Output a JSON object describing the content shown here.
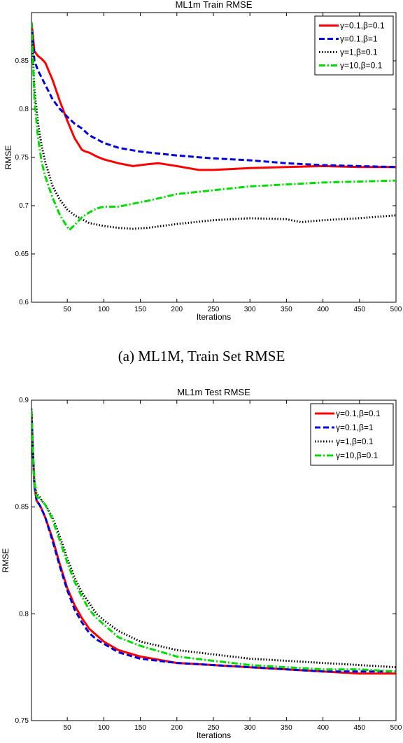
{
  "caption_a": "(a) ML1M, Train Set RMSE",
  "chart_data": [
    {
      "type": "line",
      "title": "ML1m Train RMSE",
      "xlabel": "Iterations",
      "ylabel": "RMSE",
      "xlim": [
        1,
        500
      ],
      "ylim": [
        0.6,
        0.9
      ],
      "xticks": [
        50,
        100,
        150,
        200,
        250,
        300,
        350,
        400,
        450,
        500
      ],
      "yticks": [
        0.6,
        0.65,
        0.7,
        0.75,
        0.8,
        0.85
      ],
      "ytick_labels": [
        "0.6",
        "0.65",
        "0.7",
        "0.75",
        "0.8",
        "0.85"
      ],
      "grid": false,
      "legend_position": "top-right",
      "series": [
        {
          "name": "γ=0.1,β=0.1",
          "color": "#ff0000",
          "dash": "solid",
          "x": [
            1,
            5,
            10,
            15,
            20,
            30,
            40,
            50,
            60,
            70,
            75,
            80,
            90,
            100,
            120,
            140,
            160,
            175,
            200,
            230,
            250,
            300,
            350,
            400,
            450,
            500
          ],
          "y": [
            0.89,
            0.86,
            0.855,
            0.852,
            0.848,
            0.83,
            0.808,
            0.788,
            0.77,
            0.758,
            0.756,
            0.755,
            0.751,
            0.748,
            0.744,
            0.741,
            0.743,
            0.744,
            0.741,
            0.737,
            0.737,
            0.739,
            0.74,
            0.741,
            0.74,
            0.74
          ]
        },
        {
          "name": "γ=0.1,β=1",
          "color": "#0000dd",
          "dash": "dashed",
          "x": [
            1,
            5,
            10,
            20,
            30,
            40,
            50,
            60,
            70,
            80,
            100,
            120,
            150,
            200,
            250,
            300,
            350,
            400,
            450,
            500
          ],
          "y": [
            0.89,
            0.85,
            0.84,
            0.825,
            0.81,
            0.8,
            0.792,
            0.785,
            0.78,
            0.773,
            0.765,
            0.76,
            0.756,
            0.752,
            0.749,
            0.747,
            0.744,
            0.742,
            0.741,
            0.74
          ]
        },
        {
          "name": "γ=1,β=0.1",
          "color": "#000000",
          "dash": "dotted",
          "x": [
            1,
            5,
            10,
            15,
            20,
            30,
            40,
            50,
            60,
            70,
            80,
            100,
            120,
            140,
            160,
            200,
            250,
            300,
            350,
            370,
            400,
            450,
            500
          ],
          "y": [
            0.89,
            0.82,
            0.785,
            0.762,
            0.745,
            0.72,
            0.706,
            0.696,
            0.69,
            0.686,
            0.682,
            0.679,
            0.677,
            0.676,
            0.677,
            0.681,
            0.685,
            0.687,
            0.686,
            0.683,
            0.685,
            0.687,
            0.69
          ]
        },
        {
          "name": "γ=10,β=0.1",
          "color": "#00dd00",
          "dash": "dashdot",
          "x": [
            1,
            5,
            10,
            15,
            20,
            30,
            40,
            50,
            53,
            60,
            70,
            80,
            90,
            100,
            120,
            140,
            160,
            200,
            250,
            300,
            350,
            400,
            450,
            500
          ],
          "y": [
            0.89,
            0.81,
            0.77,
            0.745,
            0.73,
            0.708,
            0.69,
            0.678,
            0.675,
            0.68,
            0.688,
            0.693,
            0.697,
            0.699,
            0.699,
            0.702,
            0.705,
            0.712,
            0.716,
            0.72,
            0.722,
            0.724,
            0.725,
            0.726
          ]
        }
      ]
    },
    {
      "type": "line",
      "title": "ML1m Test RMSE",
      "xlabel": "Iterations",
      "ylabel": "RMSE",
      "xlim": [
        1,
        500
      ],
      "ylim": [
        0.75,
        0.9
      ],
      "xticks": [
        50,
        100,
        150,
        200,
        250,
        300,
        350,
        400,
        450,
        500
      ],
      "yticks": [
        0.75,
        0.8,
        0.85,
        0.9
      ],
      "ytick_labels": [
        "0.75",
        "0.8",
        "0.85",
        "0.9"
      ],
      "grid": false,
      "legend_position": "top-right",
      "series": [
        {
          "name": "γ=0.1,β=0.1",
          "color": "#ff0000",
          "dash": "solid",
          "x": [
            1,
            3,
            5,
            8,
            12,
            15,
            20,
            30,
            40,
            50,
            60,
            70,
            80,
            90,
            100,
            120,
            150,
            200,
            250,
            300,
            350,
            400,
            450,
            500
          ],
          "y": [
            0.895,
            0.875,
            0.86,
            0.853,
            0.851,
            0.849,
            0.845,
            0.835,
            0.823,
            0.812,
            0.804,
            0.798,
            0.793,
            0.79,
            0.787,
            0.783,
            0.78,
            0.777,
            0.776,
            0.775,
            0.774,
            0.773,
            0.772,
            0.772
          ]
        },
        {
          "name": "γ=0.1,β=1",
          "color": "#0000dd",
          "dash": "dashed",
          "x": [
            1,
            3,
            5,
            8,
            12,
            15,
            20,
            30,
            40,
            50,
            60,
            70,
            80,
            90,
            100,
            120,
            150,
            200,
            250,
            300,
            350,
            400,
            450,
            500
          ],
          "y": [
            0.895,
            0.875,
            0.86,
            0.853,
            0.851,
            0.849,
            0.845,
            0.834,
            0.822,
            0.811,
            0.802,
            0.796,
            0.791,
            0.788,
            0.786,
            0.782,
            0.779,
            0.777,
            0.776,
            0.775,
            0.774,
            0.773,
            0.773,
            0.773
          ]
        },
        {
          "name": "γ=1,β=0.1",
          "color": "#000000",
          "dash": "dotted",
          "x": [
            1,
            3,
            5,
            8,
            12,
            15,
            20,
            30,
            40,
            50,
            60,
            70,
            80,
            90,
            100,
            120,
            150,
            200,
            250,
            300,
            350,
            400,
            450,
            500
          ],
          "y": [
            0.896,
            0.876,
            0.862,
            0.856,
            0.855,
            0.853,
            0.851,
            0.845,
            0.836,
            0.826,
            0.817,
            0.81,
            0.805,
            0.8,
            0.797,
            0.792,
            0.787,
            0.783,
            0.781,
            0.779,
            0.778,
            0.777,
            0.776,
            0.775
          ]
        },
        {
          "name": "γ=10,β=0.1",
          "color": "#00dd00",
          "dash": "dashdot",
          "x": [
            1,
            3,
            5,
            8,
            12,
            15,
            20,
            30,
            40,
            50,
            60,
            70,
            80,
            90,
            100,
            120,
            150,
            200,
            250,
            300,
            350,
            400,
            450,
            500
          ],
          "y": [
            0.895,
            0.875,
            0.861,
            0.855,
            0.854,
            0.853,
            0.851,
            0.844,
            0.834,
            0.824,
            0.815,
            0.808,
            0.802,
            0.798,
            0.795,
            0.789,
            0.785,
            0.78,
            0.778,
            0.776,
            0.775,
            0.774,
            0.774,
            0.773
          ]
        }
      ]
    }
  ]
}
